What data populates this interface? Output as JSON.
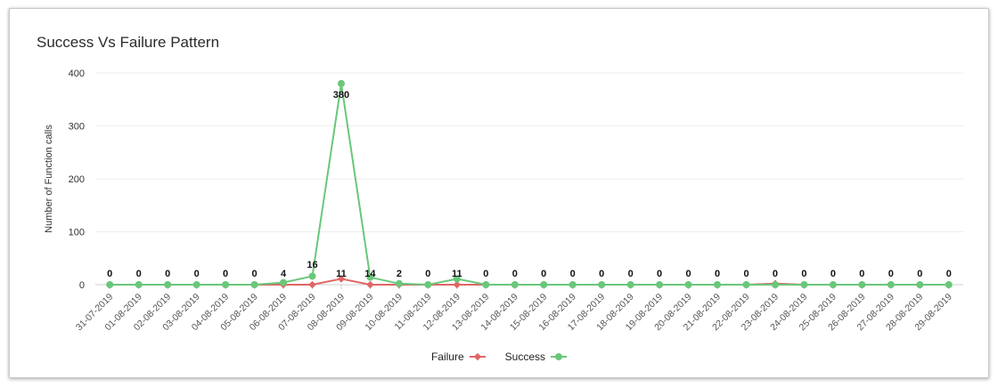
{
  "title": "Success Vs Failure Pattern",
  "chart_data": {
    "type": "line",
    "title": "Success Vs Failure Pattern",
    "xlabel": "",
    "ylabel": "Number of Function calls",
    "ylim": [
      0,
      400
    ],
    "yticks": [
      0,
      100,
      200,
      300,
      400
    ],
    "grid": true,
    "legend_position": "bottom-center",
    "categories": [
      "31-07-2019",
      "01-08-2019",
      "02-08-2019",
      "03-08-2019",
      "04-08-2019",
      "05-08-2019",
      "06-08-2019",
      "07-08-2019",
      "08-08-2019",
      "09-08-2019",
      "10-08-2019",
      "11-08-2019",
      "12-08-2019",
      "13-08-2019",
      "14-08-2019",
      "15-08-2019",
      "16-08-2019",
      "17-08-2019",
      "18-08-2019",
      "19-08-2019",
      "20-08-2019",
      "21-08-2019",
      "22-08-2019",
      "23-08-2019",
      "24-08-2019",
      "25-08-2019",
      "26-08-2019",
      "27-08-2019",
      "28-08-2019",
      "29-08-2019"
    ],
    "series": [
      {
        "name": "Failure",
        "color": "#e06666",
        "marker": "diamond",
        "values": [
          0,
          0,
          0,
          0,
          0,
          0,
          0,
          0,
          11,
          0,
          0,
          0,
          0,
          0,
          0,
          0,
          0,
          0,
          0,
          0,
          0,
          0,
          0,
          2,
          0,
          0,
          0,
          0,
          0,
          0
        ]
      },
      {
        "name": "Success",
        "color": "#69c77a",
        "marker": "circle",
        "values": [
          0,
          0,
          0,
          0,
          0,
          0,
          4,
          16,
          380,
          14,
          2,
          0,
          11,
          0,
          0,
          0,
          0,
          0,
          0,
          0,
          0,
          0,
          0,
          0,
          0,
          0,
          0,
          0,
          0,
          0
        ]
      }
    ],
    "data_labels": [
      "0",
      "0",
      "0",
      "0",
      "0",
      "0",
      "4",
      "16",
      "11",
      "14",
      "2",
      "0",
      "11",
      "0",
      "0",
      "0",
      "0",
      "0",
      "0",
      "0",
      "0",
      "0",
      "0",
      "0",
      "0",
      "0",
      "0",
      "0",
      "0",
      "0"
    ],
    "peak_label": "380"
  }
}
